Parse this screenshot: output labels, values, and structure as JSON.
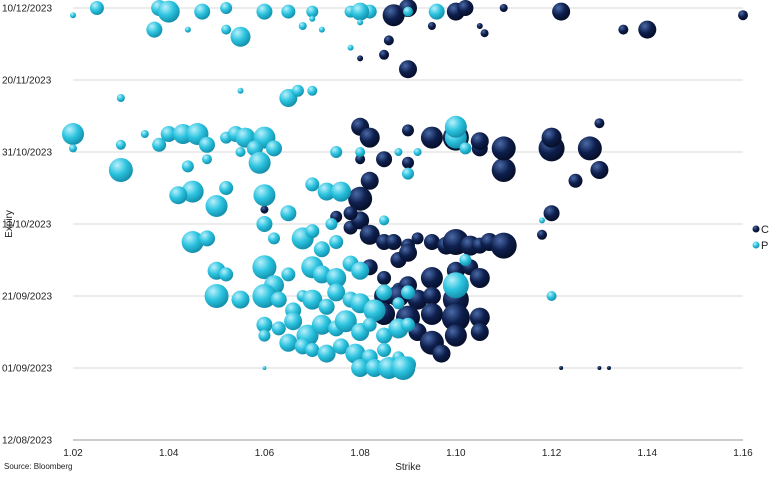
{
  "source": "Source: Bloomberg",
  "colors": {
    "C": "#0e1f4d",
    "P": "#2bc3df",
    "grid": "#d9d9d9",
    "axis": "#9a9a9a"
  },
  "chart_data": {
    "type": "scatter",
    "bubble": true,
    "xlabel": "Strike",
    "ylabel": "Expiry",
    "xlim": [
      1.02,
      1.16
    ],
    "ylim": [
      "2023-08-12",
      "2023-12-10"
    ],
    "x_ticks": [
      "1.02",
      "1.04",
      "1.06",
      "1.08",
      "1.10",
      "1.12",
      "1.14",
      "1.16"
    ],
    "y_ticks": [
      "10/12/2023",
      "20/11/2023",
      "31/10/2023",
      "11/10/2023",
      "21/09/2023",
      "01/09/2023",
      "12/08/2023"
    ],
    "grid": "horizontal",
    "legend": "right",
    "series": [
      {
        "name": "C",
        "color": "#0e1f4d",
        "points": [
          [
            1.075,
            "2023-10-13",
            6
          ],
          [
            1.078,
            "2023-10-10",
            7
          ],
          [
            1.08,
            "2023-10-12",
            9
          ],
          [
            1.082,
            "2023-10-08",
            10
          ],
          [
            1.085,
            "2023-10-06",
            8
          ],
          [
            1.087,
            "2023-10-06",
            8
          ],
          [
            1.09,
            "2023-10-05",
            7
          ],
          [
            1.092,
            "2023-10-07",
            6
          ],
          [
            1.095,
            "2023-10-06",
            8
          ],
          [
            1.098,
            "2023-10-05",
            9
          ],
          [
            1.1,
            "2023-10-06",
            13
          ],
          [
            1.103,
            "2023-10-05",
            10
          ],
          [
            1.105,
            "2023-10-05",
            8
          ],
          [
            1.107,
            "2023-10-06",
            9
          ],
          [
            1.11,
            "2023-10-05",
            13
          ],
          [
            1.088,
            "2023-10-01",
            8
          ],
          [
            1.09,
            "2023-10-03",
            9
          ],
          [
            1.082,
            "2023-09-29",
            8
          ],
          [
            1.085,
            "2023-09-26",
            7
          ],
          [
            1.088,
            "2023-09-23",
            6
          ],
          [
            1.09,
            "2023-09-24",
            9
          ],
          [
            1.095,
            "2023-09-26",
            11
          ],
          [
            1.1,
            "2023-09-28",
            9
          ],
          [
            1.103,
            "2023-09-29",
            8
          ],
          [
            1.105,
            "2023-09-26",
            10
          ],
          [
            1.085,
            "2023-09-21",
            10
          ],
          [
            1.088,
            "2023-09-21",
            11
          ],
          [
            1.092,
            "2023-09-20",
            10
          ],
          [
            1.095,
            "2023-09-21",
            9
          ],
          [
            1.1,
            "2023-09-20",
            13
          ],
          [
            1.085,
            "2023-09-16",
            11
          ],
          [
            1.09,
            "2023-09-15",
            12
          ],
          [
            1.095,
            "2023-09-16",
            11
          ],
          [
            1.1,
            "2023-09-15",
            14
          ],
          [
            1.105,
            "2023-09-15",
            10
          ],
          [
            1.092,
            "2023-09-11",
            9
          ],
          [
            1.095,
            "2023-09-08",
            12
          ],
          [
            1.1,
            "2023-09-10",
            11
          ],
          [
            1.105,
            "2023-09-11",
            9
          ],
          [
            1.097,
            "2023-09-05",
            9
          ],
          [
            1.08,
            "2023-10-18",
            12
          ],
          [
            1.082,
            "2023-10-23",
            9
          ],
          [
            1.078,
            "2023-10-14",
            7
          ],
          [
            1.085,
            "2023-10-29",
            8
          ],
          [
            1.09,
            "2023-10-28",
            6
          ],
          [
            1.11,
            "2023-10-26",
            12
          ],
          [
            1.105,
            "2023-11-01",
            8
          ],
          [
            1.12,
            "2023-10-14",
            8
          ],
          [
            1.125,
            "2023-10-23",
            7
          ],
          [
            1.13,
            "2023-10-26",
            9
          ],
          [
            1.118,
            "2023-10-08",
            5
          ],
          [
            1.1,
            "2023-11-04",
            13
          ],
          [
            1.095,
            "2023-11-04",
            11
          ],
          [
            1.105,
            "2023-11-03",
            9
          ],
          [
            1.11,
            "2023-11-01",
            12
          ],
          [
            1.12,
            "2023-11-01",
            13
          ],
          [
            1.128,
            "2023-11-01",
            12
          ],
          [
            1.12,
            "2023-11-04",
            10
          ],
          [
            1.13,
            "2023-11-08",
            5
          ],
          [
            1.08,
            "2023-11-07",
            9
          ],
          [
            1.082,
            "2023-11-04",
            10
          ],
          [
            1.09,
            "2023-11-06",
            6
          ],
          [
            1.09,
            "2023-11-23",
            9
          ],
          [
            1.085,
            "2023-11-27",
            5
          ],
          [
            1.086,
            "2023-12-01",
            5
          ],
          [
            1.087,
            "2023-12-08",
            11
          ],
          [
            1.09,
            "2023-12-10",
            9
          ],
          [
            1.1,
            "2023-12-09",
            9
          ],
          [
            1.102,
            "2023-12-10",
            8
          ],
          [
            1.11,
            "2023-12-10",
            4
          ],
          [
            1.122,
            "2023-12-09",
            9
          ],
          [
            1.14,
            "2023-12-04",
            9
          ],
          [
            1.135,
            "2023-12-04",
            5
          ],
          [
            1.16,
            "2023-12-08",
            5
          ],
          [
            1.105,
            "2023-12-05",
            3
          ],
          [
            1.106,
            "2023-12-03",
            4
          ],
          [
            1.095,
            "2023-12-05",
            4
          ],
          [
            1.08,
            "2023-11-26",
            3
          ],
          [
            1.12,
            "2023-09-21",
            3
          ],
          [
            1.13,
            "2023-09-01",
            2
          ],
          [
            1.132,
            "2023-09-01",
            2
          ],
          [
            1.122,
            "2023-09-01",
            2
          ],
          [
            1.08,
            "2023-10-29",
            5
          ],
          [
            1.06,
            "2023-10-15",
            4
          ]
        ]
      },
      {
        "name": "P",
        "color": "#2bc3df",
        "points": [
          [
            1.02,
            "2023-12-08",
            3
          ],
          [
            1.025,
            "2023-12-10",
            7
          ],
          [
            1.038,
            "2023-12-10",
            8
          ],
          [
            1.04,
            "2023-12-09",
            11
          ],
          [
            1.047,
            "2023-12-09",
            8
          ],
          [
            1.052,
            "2023-12-10",
            6
          ],
          [
            1.06,
            "2023-12-09",
            8
          ],
          [
            1.065,
            "2023-12-09",
            7
          ],
          [
            1.07,
            "2023-12-09",
            6
          ],
          [
            1.078,
            "2023-12-09",
            6
          ],
          [
            1.082,
            "2023-12-09",
            7
          ],
          [
            1.09,
            "2023-12-09",
            5
          ],
          [
            1.096,
            "2023-12-09",
            8
          ],
          [
            1.037,
            "2023-12-04",
            8
          ],
          [
            1.044,
            "2023-12-04",
            3
          ],
          [
            1.052,
            "2023-12-04",
            5
          ],
          [
            1.055,
            "2023-12-02",
            10
          ],
          [
            1.068,
            "2023-12-05",
            4
          ],
          [
            1.072,
            "2023-12-04",
            3
          ],
          [
            1.055,
            "2023-11-17",
            3
          ],
          [
            1.065,
            "2023-11-15",
            9
          ],
          [
            1.067,
            "2023-11-17",
            6
          ],
          [
            1.07,
            "2023-11-17",
            5
          ],
          [
            1.03,
            "2023-11-15",
            4
          ],
          [
            1.02,
            "2023-11-05",
            11
          ],
          [
            1.035,
            "2023-11-05",
            4
          ],
          [
            1.038,
            "2023-11-02",
            7
          ],
          [
            1.04,
            "2023-11-05",
            8
          ],
          [
            1.043,
            "2023-11-05",
            10
          ],
          [
            1.046,
            "2023-11-05",
            11
          ],
          [
            1.048,
            "2023-11-02",
            8
          ],
          [
            1.052,
            "2023-11-04",
            6
          ],
          [
            1.054,
            "2023-11-05",
            8
          ],
          [
            1.056,
            "2023-11-04",
            10
          ],
          [
            1.06,
            "2023-11-04",
            11
          ],
          [
            1.062,
            "2023-11-01",
            8
          ],
          [
            1.058,
            "2023-11-01",
            8
          ],
          [
            1.055,
            "2023-10-31",
            5
          ],
          [
            1.059,
            "2023-10-28",
            11
          ],
          [
            1.048,
            "2023-10-29",
            5
          ],
          [
            1.02,
            "2023-11-01",
            4
          ],
          [
            1.03,
            "2023-11-02",
            5
          ],
          [
            1.03,
            "2023-10-26",
            12
          ],
          [
            1.044,
            "2023-10-27",
            6
          ],
          [
            1.045,
            "2023-10-20",
            11
          ],
          [
            1.042,
            "2023-10-19",
            9
          ],
          [
            1.05,
            "2023-10-16",
            11
          ],
          [
            1.052,
            "2023-10-21",
            7
          ],
          [
            1.06,
            "2023-10-19",
            11
          ],
          [
            1.07,
            "2023-10-22",
            7
          ],
          [
            1.073,
            "2023-10-20",
            9
          ],
          [
            1.076,
            "2023-10-20",
            10
          ],
          [
            1.065,
            "2023-10-14",
            8
          ],
          [
            1.06,
            "2023-10-11",
            8
          ],
          [
            1.062,
            "2023-10-07",
            6
          ],
          [
            1.045,
            "2023-10-06",
            11
          ],
          [
            1.048,
            "2023-10-07",
            8
          ],
          [
            1.068,
            "2023-10-07",
            11
          ],
          [
            1.072,
            "2023-10-04",
            8
          ],
          [
            1.075,
            "2023-10-06",
            7
          ],
          [
            1.07,
            "2023-10-09",
            7
          ],
          [
            1.074,
            "2023-10-11",
            6
          ],
          [
            1.05,
            "2023-09-28",
            9
          ],
          [
            1.052,
            "2023-09-27",
            7
          ],
          [
            1.06,
            "2023-09-29",
            12
          ],
          [
            1.062,
            "2023-09-24",
            10
          ],
          [
            1.065,
            "2023-09-27",
            7
          ],
          [
            1.07,
            "2023-09-29",
            11
          ],
          [
            1.072,
            "2023-09-27",
            9
          ],
          [
            1.075,
            "2023-09-26",
            10
          ],
          [
            1.078,
            "2023-09-30",
            8
          ],
          [
            1.08,
            "2023-09-28",
            9
          ],
          [
            1.05,
            "2023-09-21",
            12
          ],
          [
            1.055,
            "2023-09-20",
            9
          ],
          [
            1.06,
            "2023-09-21",
            12
          ],
          [
            1.063,
            "2023-09-20",
            8
          ],
          [
            1.066,
            "2023-09-17",
            8
          ],
          [
            1.068,
            "2023-09-21",
            6
          ],
          [
            1.07,
            "2023-09-20",
            10
          ],
          [
            1.073,
            "2023-09-18",
            8
          ],
          [
            1.075,
            "2023-09-22",
            9
          ],
          [
            1.078,
            "2023-09-20",
            8
          ],
          [
            1.08,
            "2023-09-19",
            10
          ],
          [
            1.083,
            "2023-09-17",
            11
          ],
          [
            1.085,
            "2023-09-22",
            8
          ],
          [
            1.088,
            "2023-09-19",
            6
          ],
          [
            1.09,
            "2023-09-22",
            7
          ],
          [
            1.06,
            "2023-09-13",
            8
          ],
          [
            1.063,
            "2023-09-12",
            7
          ],
          [
            1.066,
            "2023-09-14",
            9
          ],
          [
            1.069,
            "2023-09-10",
            11
          ],
          [
            1.072,
            "2023-09-13",
            10
          ],
          [
            1.075,
            "2023-09-12",
            8
          ],
          [
            1.077,
            "2023-09-14",
            11
          ],
          [
            1.08,
            "2023-09-11",
            9
          ],
          [
            1.082,
            "2023-09-13",
            7
          ],
          [
            1.085,
            "2023-09-10",
            8
          ],
          [
            1.088,
            "2023-09-12",
            10
          ],
          [
            1.09,
            "2023-09-13",
            7
          ],
          [
            1.06,
            "2023-09-10",
            6
          ],
          [
            1.065,
            "2023-09-08",
            9
          ],
          [
            1.068,
            "2023-09-07",
            8
          ],
          [
            1.07,
            "2023-09-06",
            7
          ],
          [
            1.073,
            "2023-09-05",
            9
          ],
          [
            1.076,
            "2023-09-07",
            8
          ],
          [
            1.079,
            "2023-09-05",
            10
          ],
          [
            1.082,
            "2023-09-04",
            8
          ],
          [
            1.085,
            "2023-09-06",
            7
          ],
          [
            1.088,
            "2023-09-04",
            6
          ],
          [
            1.09,
            "2023-09-02",
            8
          ],
          [
            1.08,
            "2023-09-01",
            9
          ],
          [
            1.083,
            "2023-09-01",
            9
          ],
          [
            1.086,
            "2023-09-01",
            11
          ],
          [
            1.089,
            "2023-09-01",
            12
          ],
          [
            1.06,
            "2023-09-01",
            2
          ],
          [
            1.1,
            "2023-09-24",
            13
          ],
          [
            1.102,
            "2023-10-01",
            6
          ],
          [
            1.075,
            "2023-10-31",
            6
          ],
          [
            1.08,
            "2023-10-31",
            5
          ],
          [
            1.088,
            "2023-10-31",
            4
          ],
          [
            1.092,
            "2023-10-31",
            4
          ],
          [
            1.1,
            "2023-11-04",
            11
          ],
          [
            1.1,
            "2023-11-07",
            11
          ],
          [
            1.102,
            "2023-11-01",
            6
          ],
          [
            1.09,
            "2023-10-25",
            6
          ],
          [
            1.085,
            "2023-10-12",
            5
          ],
          [
            1.12,
            "2023-09-21",
            5
          ],
          [
            1.118,
            "2023-10-12",
            3
          ],
          [
            1.08,
            "2023-12-09",
            9
          ],
          [
            1.07,
            "2023-12-07",
            3
          ],
          [
            1.078,
            "2023-11-29",
            3
          ],
          [
            1.08,
            "2023-12-06",
            3
          ]
        ]
      }
    ]
  }
}
